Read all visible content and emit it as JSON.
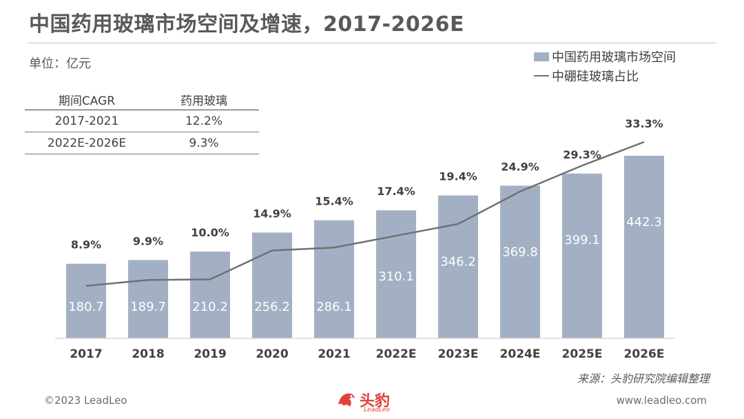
{
  "title": "中国药用玻璃市场空间及增速，2017-2026E",
  "unit_label": "单位：亿元",
  "legend": {
    "bar": "中国药用玻璃市场空间",
    "line": "中硼硅玻璃占比"
  },
  "cagr_table": {
    "headers": [
      "期间CAGR",
      "药用玻璃"
    ],
    "rows": [
      [
        "2017-2021",
        "12.2%"
      ],
      [
        "2022E-2026E",
        "9.3%"
      ]
    ]
  },
  "source": "来源：头豹研究院编辑整理",
  "footer": {
    "copyright": "©2023 LeadLeo",
    "website": "www.leadleo.com",
    "brand": "头豹",
    "brand_sub": "LeadLeo"
  },
  "colors": {
    "bar": "#a3b0c4",
    "line": "#707070",
    "accent": "#e0423a"
  },
  "chart_data": {
    "type": "bar",
    "categories": [
      "2017",
      "2018",
      "2019",
      "2020",
      "2021",
      "2022E",
      "2023E",
      "2024E",
      "2025E",
      "2026E"
    ],
    "series": [
      {
        "name": "中国药用玻璃市场空间",
        "type": "bar",
        "values": [
          180.7,
          189.7,
          210.2,
          256.2,
          286.1,
          310.1,
          346.2,
          369.8,
          399.1,
          442.3
        ],
        "labels": [
          "180.7",
          "189.7",
          "210.2",
          "256.2",
          "286.1",
          "310.1",
          "346.2",
          "369.8",
          "399.1",
          "442.3"
        ]
      },
      {
        "name": "中硼硅玻璃占比",
        "type": "line",
        "values": [
          8.9,
          9.9,
          10.0,
          14.9,
          15.4,
          17.4,
          19.4,
          24.9,
          29.3,
          33.3
        ],
        "labels": [
          "8.9%",
          "9.9%",
          "10.0%",
          "14.9%",
          "15.4%",
          "17.4%",
          "19.4%",
          "24.9%",
          "29.3%",
          "33.3%"
        ]
      }
    ],
    "xlabel": "",
    "ylabel": ""
  }
}
